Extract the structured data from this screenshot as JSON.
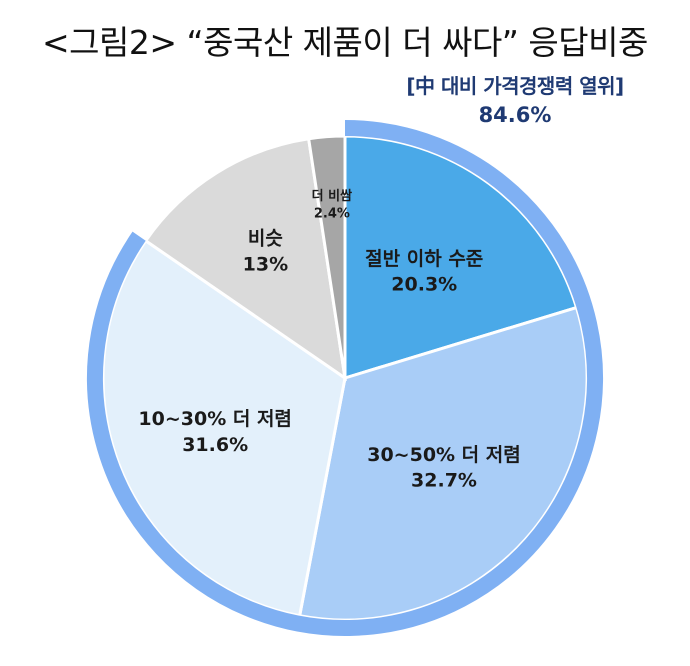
{
  "title": "<그림2> “중국산 제품이 더 싸다” 응답비중",
  "annotation": {
    "label": "[中 대비 가격경쟁력 열위]",
    "value": "84.6%"
  },
  "colors": {
    "ring": "#7fb0f3",
    "cheaper_half": "#4aa9e8",
    "cheaper_30_50": "#a9cdf7",
    "cheaper_10_30": "#e3f0fb",
    "similar": "#dadada",
    "more_expensive": "#a6a6a6"
  },
  "chart_data": {
    "type": "pie",
    "start": "12 o'clock, clockwise",
    "slices": [
      {
        "label": "절반 이하 수준",
        "value": 20.3,
        "value_label": "20.3%",
        "color": "#4aa9e8"
      },
      {
        "label": "30~50% 더 저렴",
        "value": 32.7,
        "value_label": "32.7%",
        "color": "#a9cdf7"
      },
      {
        "label": "10~30% 더 저렴",
        "value": 31.6,
        "value_label": "31.6%",
        "color": "#e3f0fb"
      },
      {
        "label": "비슷",
        "value": 13,
        "value_label": "13%",
        "color": "#dadada"
      },
      {
        "label": "더 비쌈",
        "value": 2.4,
        "value_label": "2.4%",
        "color": "#a6a6a6"
      }
    ],
    "highlight_ring": {
      "value": 84.6,
      "label": "[中 대비 가격경쟁력 열위]",
      "covers": [
        "절반 이하 수준",
        "30~50% 더 저렴",
        "10~30% 더 저렴"
      ]
    }
  }
}
